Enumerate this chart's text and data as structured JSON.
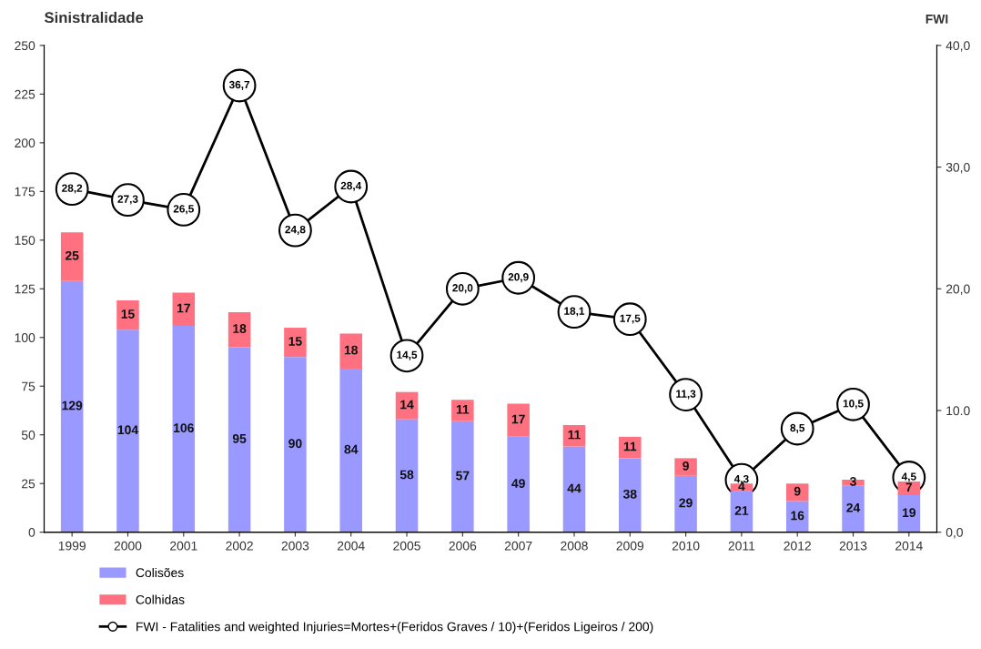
{
  "chart_data": {
    "type": "bar",
    "title": "Sinistralidade",
    "y2label": "FWI",
    "stacked": true,
    "data_labels": true,
    "legend": "bottom",
    "grid": false,
    "categories": [
      "1999",
      "2000",
      "2001",
      "2002",
      "2003",
      "2004",
      "2005",
      "2006",
      "2007",
      "2008",
      "2009",
      "2010",
      "2011",
      "2012",
      "2013",
      "2014"
    ],
    "ylim": [
      0,
      250
    ],
    "yticks": [
      0,
      25,
      50,
      75,
      100,
      125,
      150,
      175,
      200,
      225,
      250
    ],
    "y2lim": [
      0,
      40
    ],
    "y2ticks": [
      {
        "value": 0,
        "label": "0,0"
      },
      {
        "value": 10,
        "label": "10.0"
      },
      {
        "value": 20,
        "label": "20,0"
      },
      {
        "value": 30,
        "label": "30,0"
      },
      {
        "value": 40,
        "label": "40,0"
      }
    ],
    "series": [
      {
        "name": "Colisões",
        "color": "#9999ff",
        "values": [
          129,
          104,
          106,
          95,
          90,
          84,
          58,
          57,
          49,
          44,
          38,
          29,
          21,
          16,
          24,
          19
        ]
      },
      {
        "name": "Colhidas",
        "color": "#ff7080",
        "values": [
          25,
          15,
          17,
          18,
          15,
          18,
          14,
          11,
          17,
          11,
          11,
          9,
          4,
          9,
          3,
          7
        ]
      },
      {
        "name": "FWI - Fatalities and weighted Injuries=Mortes+(Feridos Graves / 10)+(Feridos Ligeiros / 200)",
        "type": "line",
        "axis": "y2",
        "color": "#000000",
        "marker": "circle",
        "line_style": "solid",
        "values": [
          28.2,
          27.3,
          26.5,
          36.7,
          24.8,
          28.4,
          14.5,
          20.0,
          20.9,
          18.1,
          17.5,
          11.3,
          4.3,
          8.5,
          10.5,
          4.5
        ],
        "value_labels": [
          "28,2",
          "27,3",
          "26,5",
          "36,7",
          "24,8",
          "28,4",
          "14,5",
          "20,0",
          "20,9",
          "18,1",
          "17,5",
          "11,3",
          "4,3",
          "8,5",
          "10,5",
          "4,5"
        ]
      }
    ]
  }
}
